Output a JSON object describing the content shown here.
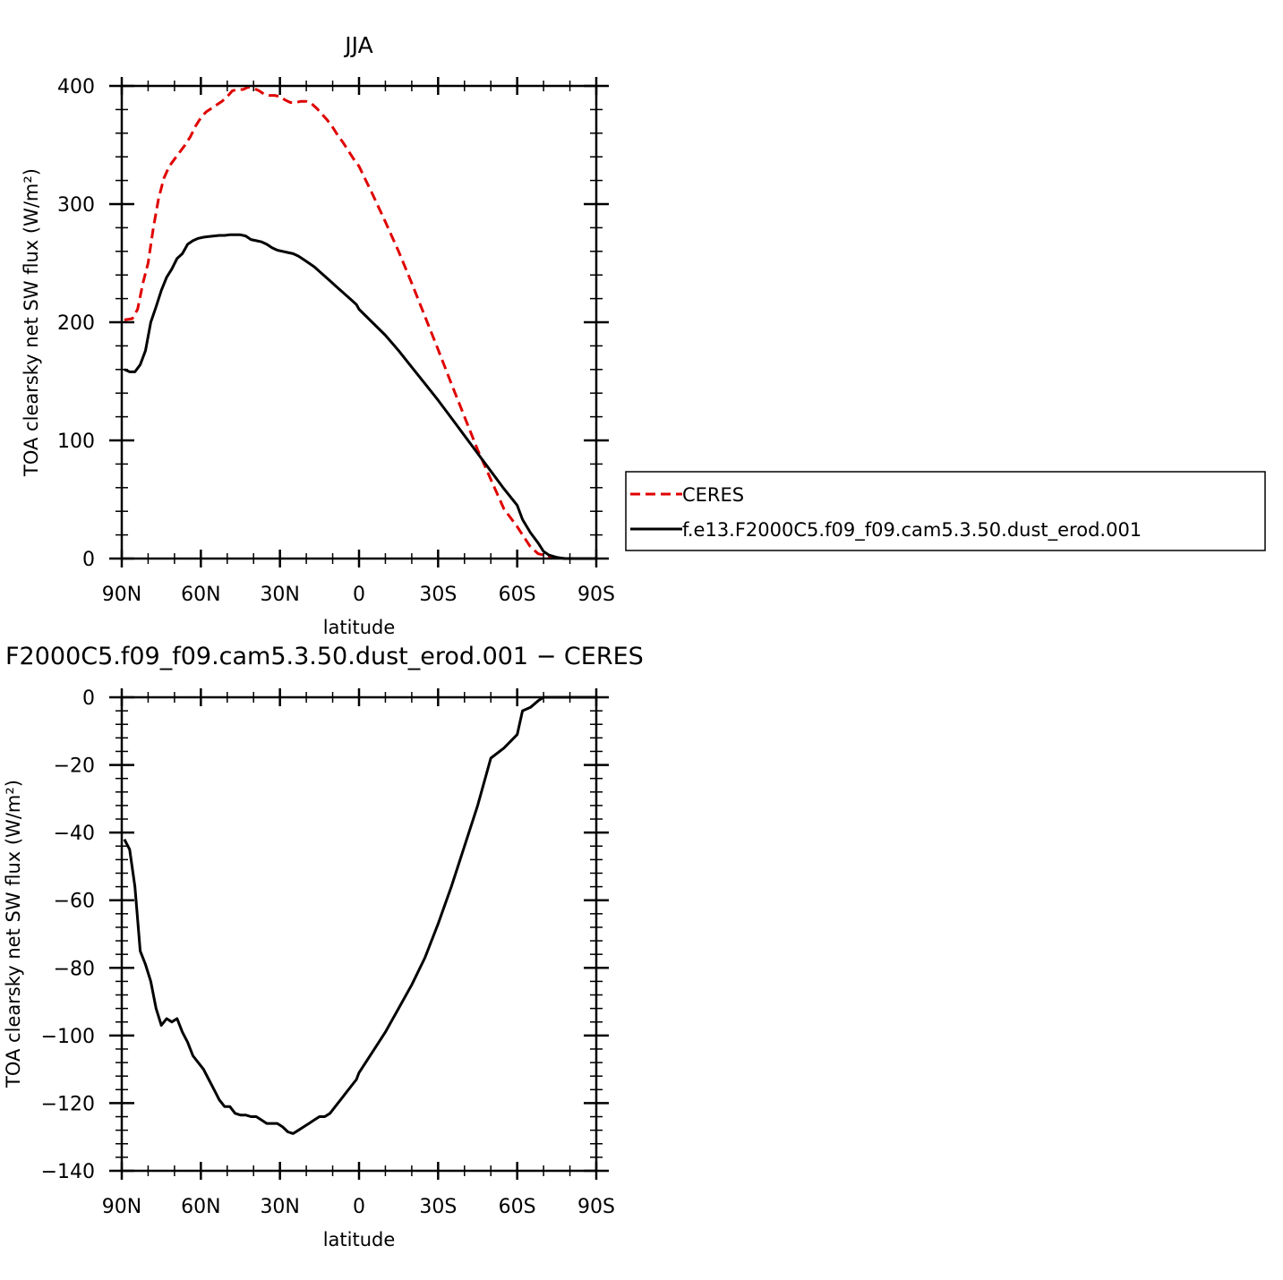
{
  "chart_data": [
    {
      "type": "line",
      "title": "JJA",
      "xlabel": "latitude",
      "ylabel": "TOA clearsky net SW flux (W/m²)",
      "xlim": [
        -90,
        90
      ],
      "ylim": [
        0,
        400
      ],
      "x_ticks": [
        -90,
        -60,
        -30,
        0,
        30,
        60,
        90
      ],
      "x_tick_labels": [
        "90N",
        "60N",
        "30N",
        "0",
        "30S",
        "60S",
        "90S"
      ],
      "y_ticks": [
        0,
        100,
        200,
        300,
        400
      ],
      "y_tick_labels": [
        "0",
        "100",
        "200",
        "300",
        "400"
      ],
      "legend": "right",
      "series": [
        {
          "name": "CERES",
          "color": "#e00000",
          "dash": "dashed",
          "x": [
            -89,
            -86,
            -84,
            -82,
            -80,
            -78,
            -76,
            -74,
            -72,
            -70,
            -68,
            -66,
            -64,
            -62,
            -60,
            -58,
            -56,
            -54,
            -52,
            -50,
            -48,
            -46,
            -44,
            -42,
            -40,
            -38,
            -36,
            -34,
            -32,
            -30,
            -28,
            -26,
            -24,
            -22,
            -20,
            -18,
            -16,
            -14,
            -12,
            -10,
            -8,
            -6,
            -4,
            -2,
            0,
            5,
            10,
            15,
            20,
            25,
            30,
            35,
            40,
            45,
            50,
            55,
            60,
            62,
            65,
            68,
            70,
            72,
            75,
            78,
            80,
            85,
            90
          ],
          "values": [
            202,
            203,
            211,
            233,
            250,
            280,
            305,
            322,
            332,
            338,
            344,
            350,
            357,
            366,
            373,
            378,
            381,
            384,
            387,
            391,
            396,
            397,
            397,
            399,
            398,
            396,
            393,
            392,
            392,
            391,
            388,
            386,
            386,
            387,
            387,
            385,
            381,
            376,
            371,
            365,
            358,
            352,
            345,
            338,
            332,
            309,
            285,
            260,
            233,
            205,
            177,
            148,
            120,
            92,
            67,
            42,
            27,
            20,
            10,
            4,
            3,
            2,
            1,
            0,
            0,
            0,
            0
          ]
        },
        {
          "name": "f.e13.F2000C5.f09_f09.cam5.3.50.dust_erod.001",
          "color": "#000000",
          "dash": "solid",
          "x": [
            -89,
            -87,
            -85,
            -83,
            -81,
            -79,
            -77,
            -75,
            -73,
            -71,
            -69,
            -67,
            -65,
            -63,
            -61,
            -59,
            -57,
            -55,
            -53,
            -51,
            -49,
            -47,
            -45,
            -43,
            -41,
            -39,
            -37,
            -35,
            -33,
            -31,
            -29,
            -27,
            -25,
            -23,
            -21,
            -19,
            -17,
            -15,
            -13,
            -11,
            -9,
            -7,
            -5,
            -3,
            -1,
            0,
            5,
            10,
            15,
            20,
            25,
            30,
            35,
            40,
            45,
            50,
            55,
            60,
            62,
            65,
            68,
            70,
            72,
            75,
            78,
            80,
            85,
            90
          ],
          "values": [
            160,
            158,
            158,
            164,
            176,
            200,
            213,
            227,
            238,
            245,
            254,
            258,
            266,
            269,
            271,
            272,
            272.5,
            273,
            273.5,
            273.5,
            274,
            274,
            274,
            273,
            270,
            269,
            268,
            266,
            263,
            261,
            260,
            259,
            258,
            256,
            253,
            250,
            247,
            243,
            239,
            235,
            231,
            227,
            223,
            219,
            215,
            211,
            200,
            189,
            176,
            162,
            148,
            134,
            119,
            104,
            89,
            74,
            59,
            45,
            33,
            22,
            13,
            6,
            3,
            1,
            0,
            0,
            0,
            0
          ]
        }
      ]
    },
    {
      "type": "line",
      "title": "F2000C5.f09_f09.cam5.3.50.dust_erod.001 − CERES",
      "xlabel": "latitude",
      "ylabel": "TOA clearsky net SW flux (W/m²)",
      "xlim": [
        -90,
        90
      ],
      "ylim": [
        -140,
        0
      ],
      "x_ticks": [
        -90,
        -60,
        -30,
        0,
        30,
        60,
        90
      ],
      "x_tick_labels": [
        "90N",
        "60N",
        "30N",
        "0",
        "30S",
        "60S",
        "90S"
      ],
      "y_ticks": [
        -140,
        -120,
        -100,
        -80,
        -60,
        -40,
        -20,
        0
      ],
      "y_tick_labels": [
        "−140",
        "−120",
        "−100",
        "−80",
        "−60",
        "−40",
        "−20",
        "0"
      ],
      "series": [
        {
          "color": "#000000",
          "dash": "solid",
          "x": [
            -89,
            -87,
            -85,
            -83,
            -81,
            -79,
            -77,
            -75,
            -73,
            -71,
            -69,
            -67,
            -65,
            -63,
            -61,
            -59,
            -57,
            -55,
            -53,
            -51,
            -49,
            -47,
            -45,
            -43,
            -41,
            -39,
            -37,
            -35,
            -33,
            -31,
            -29,
            -27,
            -25,
            -23,
            -21,
            -19,
            -17,
            -15,
            -13,
            -11,
            -9,
            -7,
            -5,
            -3,
            -1,
            0,
            5,
            10,
            15,
            20,
            25,
            30,
            35,
            40,
            45,
            50,
            55,
            60,
            62,
            65,
            68,
            70,
            72,
            75,
            78,
            80,
            85,
            90
          ],
          "values": [
            -42,
            -45,
            -56,
            -75,
            -79,
            -84,
            -92,
            -97,
            -95,
            -96,
            -95,
            -99,
            -102,
            -106,
            -108,
            -110,
            -113,
            -116,
            -119,
            -121,
            -121,
            -123,
            -123.5,
            -123.5,
            -124,
            -124,
            -125,
            -126,
            -126,
            -126,
            -127,
            -128.5,
            -129,
            -128,
            -127,
            -126,
            -125,
            -124,
            -124,
            -123,
            -121,
            -119,
            -117,
            -115,
            -113,
            -111,
            -105,
            -99,
            -92,
            -85,
            -77,
            -67,
            -56,
            -44,
            -32,
            -18,
            -15,
            -11,
            -4,
            -3,
            -1,
            0,
            0,
            0,
            0,
            0,
            0,
            0
          ]
        }
      ]
    }
  ]
}
